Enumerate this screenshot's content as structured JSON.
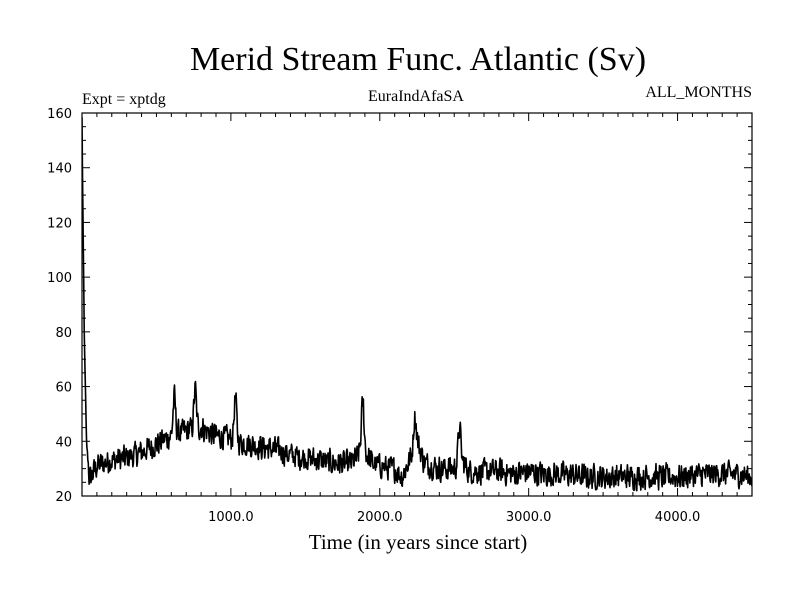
{
  "chart_data": {
    "type": "line",
    "title": "Merid Stream Func. Atlantic (Sv)",
    "annotations": {
      "left": "Expt = xptdg",
      "center": "EuraIndAfaSA",
      "right": "ALL_MONTHS"
    },
    "xlabel": "Time (in years since start)",
    "ylabel": "",
    "xlim": [
      0,
      4500
    ],
    "ylim": [
      20,
      160
    ],
    "x_ticks": [
      1000,
      2000,
      3000,
      4000
    ],
    "x_tick_labels": [
      "1000.0",
      "2000.0",
      "3000.0",
      "4000.0"
    ],
    "y_ticks": [
      20,
      40,
      60,
      80,
      100,
      120,
      140,
      160
    ],
    "y_tick_labels": [
      "20",
      "40",
      "60",
      "80",
      "100",
      "120",
      "140",
      "160"
    ],
    "series": [
      {
        "name": "Merid Stream Func. Atlantic",
        "color": "#000000",
        "trend": {
          "x": [
            0,
            5,
            15,
            30,
            50,
            100,
            200,
            300,
            400,
            500,
            600,
            700,
            800,
            900,
            1000,
            1100,
            1200,
            1300,
            1400,
            1500,
            1600,
            1700,
            1800,
            1850,
            1880,
            1900,
            1950,
            2000,
            2100,
            2150,
            2200,
            2250,
            2300,
            2400,
            2500,
            2550,
            2600,
            2700,
            2800,
            2900,
            3000,
            3100,
            3200,
            3400,
            3600,
            3800,
            4000,
            4200,
            4400,
            4500
          ],
          "y": [
            158,
            130,
            80,
            40,
            26,
            31,
            33,
            34,
            36,
            39,
            42,
            44,
            45,
            42,
            41,
            39,
            38,
            37,
            35,
            34,
            33,
            32,
            32,
            34,
            40,
            36,
            32,
            31,
            30,
            27,
            33,
            40,
            32,
            30,
            30,
            33,
            29,
            29,
            29,
            28,
            29,
            28,
            28,
            27,
            27,
            27,
            27,
            28,
            28,
            27
          ]
        },
        "spikes": [
          {
            "x": 1887,
            "y": 54
          },
          {
            "x": 2235,
            "y": 49
          },
          {
            "x": 2535,
            "y": 45
          },
          {
            "x": 760,
            "y": 59
          },
          {
            "x": 1030,
            "y": 56
          },
          {
            "x": 620,
            "y": 56
          }
        ],
        "noise_amplitude": 4,
        "sample_step": 3
      }
    ]
  }
}
